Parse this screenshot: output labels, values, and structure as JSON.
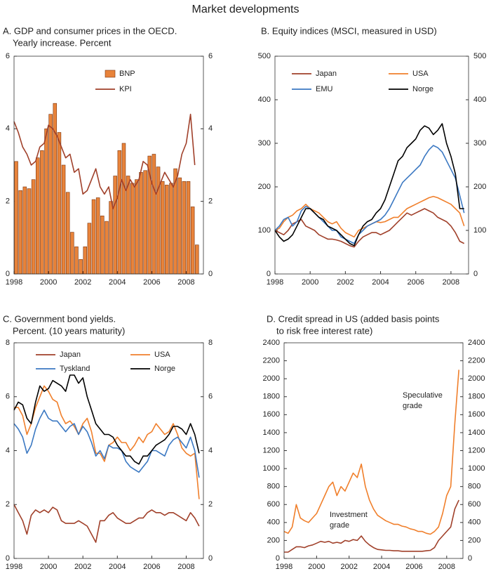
{
  "title": "Market developments",
  "chart_data": [
    {
      "type": "bar",
      "title": "A. GDP and consumer prices in the OECD.",
      "subtitle": "Yearly increase. Percent",
      "x": [
        1998,
        1998.25,
        1998.5,
        1998.75,
        1999,
        1999.25,
        1999.5,
        1999.75,
        2000,
        2000.25,
        2000.5,
        2000.75,
        2001,
        2001.25,
        2001.5,
        2001.75,
        2002,
        2002.25,
        2002.5,
        2002.75,
        2003,
        2003.25,
        2003.5,
        2003.75,
        2004,
        2004.25,
        2004.5,
        2004.75,
        2005,
        2005.25,
        2005.5,
        2005.75,
        2006,
        2006.25,
        2006.5,
        2006.75,
        2007,
        2007.25,
        2007.5,
        2007.75,
        2008,
        2008.25,
        2008.5
      ],
      "series": [
        {
          "name": "BNP",
          "type": "bar",
          "color": "#e8833a",
          "values": [
            3.1,
            2.3,
            2.4,
            2.35,
            2.6,
            3.2,
            3.4,
            4.0,
            4.4,
            4.7,
            3.9,
            3.0,
            2.25,
            1.15,
            0.75,
            0.4,
            0.75,
            1.4,
            2.05,
            2.1,
            1.6,
            1.45,
            2.0,
            2.7,
            3.4,
            3.6,
            2.7,
            2.5,
            2.6,
            2.8,
            2.85,
            3.25,
            3.3,
            2.95,
            2.55,
            2.45,
            2.5,
            2.9,
            2.65,
            2.55,
            2.55,
            1.85,
            0.8
          ]
        },
        {
          "name": "KPI",
          "type": "line",
          "color": "#a0402a",
          "values": [
            4.2,
            3.9,
            3.5,
            3.3,
            3.0,
            3.1,
            3.5,
            3.6,
            4.1,
            4.0,
            3.8,
            3.5,
            3.2,
            3.3,
            2.8,
            2.9,
            2.2,
            2.3,
            2.6,
            2.9,
            2.4,
            2.2,
            2.4,
            1.8,
            2.1,
            2.6,
            2.3,
            2.6,
            2.4,
            2.6,
            3.1,
            3.0,
            2.5,
            2.2,
            2.5,
            2.8,
            2.6,
            2.4,
            2.7,
            3.3,
            3.6,
            4.4,
            3.0
          ]
        }
      ],
      "xlim": [
        1998,
        2009
      ],
      "xticks": [
        1998,
        2000,
        2002,
        2004,
        2006,
        2008
      ],
      "ylim": [
        0,
        6
      ],
      "yticks": [
        0,
        2,
        4,
        6
      ],
      "y2lim": [
        0,
        6
      ],
      "y2ticks": [
        0,
        2,
        4,
        6
      ],
      "legend": "top"
    },
    {
      "type": "line",
      "title": "B. Equity indices (MSCI, measured in USD)",
      "x": [
        1998,
        1998.25,
        1998.5,
        1998.75,
        1999,
        1999.25,
        1999.5,
        1999.75,
        2000,
        2000.25,
        2000.5,
        2000.75,
        2001,
        2001.25,
        2001.5,
        2001.75,
        2002,
        2002.25,
        2002.5,
        2002.75,
        2003,
        2003.25,
        2003.5,
        2003.75,
        2004,
        2004.25,
        2004.5,
        2004.75,
        2005,
        2005.25,
        2005.5,
        2005.75,
        2006,
        2006.25,
        2006.5,
        2006.75,
        2007,
        2007.25,
        2007.5,
        2007.75,
        2008,
        2008.25,
        2008.5,
        2008.75
      ],
      "series": [
        {
          "name": "Japan",
          "color": "#a0402a",
          "values": [
            100,
            95,
            90,
            100,
            115,
            120,
            125,
            110,
            105,
            100,
            90,
            85,
            80,
            80,
            78,
            75,
            70,
            65,
            62,
            75,
            85,
            90,
            95,
            95,
            90,
            95,
            100,
            110,
            120,
            130,
            140,
            135,
            140,
            145,
            150,
            145,
            140,
            130,
            125,
            120,
            110,
            95,
            75,
            70
          ]
        },
        {
          "name": "USA",
          "color": "#f07f2b",
          "values": [
            100,
            105,
            120,
            130,
            135,
            145,
            150,
            160,
            150,
            145,
            140,
            130,
            120,
            115,
            120,
            105,
            95,
            90,
            85,
            100,
            105,
            110,
            115,
            120,
            118,
            120,
            125,
            130,
            130,
            140,
            150,
            155,
            160,
            165,
            170,
            175,
            178,
            175,
            170,
            165,
            160,
            150,
            140,
            110
          ]
        },
        {
          "name": "EMU",
          "color": "#3b78c2",
          "values": [
            100,
            110,
            125,
            130,
            110,
            120,
            145,
            155,
            150,
            140,
            130,
            120,
            110,
            100,
            100,
            85,
            80,
            75,
            70,
            90,
            100,
            110,
            115,
            120,
            125,
            135,
            150,
            170,
            190,
            210,
            220,
            230,
            240,
            250,
            270,
            285,
            295,
            290,
            280,
            260,
            240,
            220,
            180,
            140
          ]
        },
        {
          "name": "Norge",
          "color": "#000000",
          "values": [
            100,
            85,
            75,
            80,
            90,
            110,
            130,
            150,
            150,
            140,
            130,
            125,
            110,
            105,
            100,
            90,
            80,
            70,
            65,
            90,
            110,
            120,
            125,
            140,
            150,
            170,
            200,
            230,
            260,
            270,
            290,
            300,
            310,
            330,
            340,
            335,
            320,
            330,
            345,
            300,
            270,
            230,
            150,
            150
          ]
        }
      ],
      "xlim": [
        1998,
        2009
      ],
      "xticks": [
        1998,
        2000,
        2002,
        2004,
        2006,
        2008
      ],
      "ylim": [
        0,
        500
      ],
      "yticks": [
        0,
        100,
        200,
        300,
        400,
        500
      ],
      "y2lim": [
        0,
        500
      ],
      "y2ticks": [
        0,
        100,
        200,
        300,
        400,
        500
      ],
      "legend": "top"
    },
    {
      "type": "line",
      "title": "C. Government bond yields.",
      "subtitle": "Percent. (10 years maturity)",
      "x": [
        1998,
        1998.25,
        1998.5,
        1998.75,
        1999,
        1999.25,
        1999.5,
        1999.75,
        2000,
        2000.25,
        2000.5,
        2000.75,
        2001,
        2001.25,
        2001.5,
        2001.75,
        2002,
        2002.25,
        2002.5,
        2002.75,
        2003,
        2003.25,
        2003.5,
        2003.75,
        2004,
        2004.25,
        2004.5,
        2004.75,
        2005,
        2005.25,
        2005.5,
        2005.75,
        2006,
        2006.25,
        2006.5,
        2006.75,
        2007,
        2007.25,
        2007.5,
        2007.75,
        2008,
        2008.25,
        2008.5,
        2008.75
      ],
      "series": [
        {
          "name": "Japan",
          "color": "#a0402a",
          "values": [
            2.0,
            1.7,
            1.4,
            0.9,
            1.6,
            1.8,
            1.7,
            1.8,
            1.7,
            1.9,
            1.8,
            1.4,
            1.3,
            1.3,
            1.3,
            1.4,
            1.3,
            1.2,
            0.9,
            0.6,
            1.4,
            1.4,
            1.6,
            1.7,
            1.5,
            1.4,
            1.3,
            1.3,
            1.4,
            1.5,
            1.5,
            1.7,
            1.8,
            1.7,
            1.7,
            1.6,
            1.7,
            1.7,
            1.6,
            1.5,
            1.4,
            1.7,
            1.5,
            1.2
          ]
        },
        {
          "name": "USA",
          "color": "#f07f2b",
          "values": [
            5.6,
            5.6,
            5.3,
            4.6,
            5.0,
            5.6,
            6.0,
            6.4,
            6.2,
            5.9,
            5.8,
            5.3,
            5.0,
            5.1,
            4.9,
            4.6,
            5.0,
            5.2,
            4.7,
            3.9,
            3.9,
            3.6,
            4.2,
            4.3,
            4.5,
            4.3,
            4.3,
            4.0,
            4.2,
            4.5,
            4.3,
            4.6,
            4.7,
            5.0,
            4.8,
            4.6,
            4.7,
            5.0,
            4.6,
            4.1,
            3.9,
            3.8,
            3.9,
            2.2
          ]
        },
        {
          "name": "Tyskland",
          "color": "#3b78c2",
          "values": [
            5.0,
            4.8,
            4.5,
            3.9,
            4.2,
            4.8,
            5.2,
            5.5,
            5.2,
            5.1,
            5.1,
            4.9,
            4.7,
            4.9,
            5.0,
            4.6,
            4.9,
            4.7,
            4.3,
            3.8,
            4.0,
            3.7,
            4.2,
            4.1,
            4.1,
            4.0,
            3.6,
            3.4,
            3.3,
            3.2,
            3.4,
            3.6,
            4.0,
            4.0,
            3.9,
            3.8,
            4.2,
            4.4,
            4.5,
            4.3,
            4.1,
            4.5,
            4.0,
            3.0
          ]
        },
        {
          "name": "Norge",
          "color": "#000000",
          "values": [
            5.5,
            5.8,
            5.7,
            5.2,
            5.0,
            5.8,
            6.4,
            6.2,
            6.3,
            6.6,
            6.5,
            6.4,
            6.2,
            6.8,
            6.8,
            6.5,
            6.7,
            6.0,
            5.5,
            5.0,
            4.8,
            4.6,
            4.6,
            4.5,
            4.2,
            4.0,
            3.8,
            3.8,
            3.6,
            3.5,
            3.8,
            3.8,
            4.0,
            4.2,
            4.3,
            4.4,
            4.6,
            4.9,
            4.9,
            4.8,
            4.6,
            5.0,
            4.6,
            3.9
          ]
        }
      ],
      "xlim": [
        1998,
        2009
      ],
      "xticks": [
        1998,
        2000,
        2002,
        2004,
        2006,
        2008
      ],
      "ylim": [
        0,
        8
      ],
      "yticks": [
        0,
        2,
        4,
        6,
        8
      ],
      "y2lim": [
        0,
        8
      ],
      "y2ticks": [
        0,
        2,
        4,
        6,
        8
      ],
      "legend": "top"
    },
    {
      "type": "line",
      "title": "D. Credit spread in US (added basis points",
      "subtitle": "to risk free interest rate)",
      "x": [
        1998,
        1998.25,
        1998.5,
        1998.75,
        1999,
        1999.25,
        1999.5,
        1999.75,
        2000,
        2000.25,
        2000.5,
        2000.75,
        2001,
        2001.25,
        2001.5,
        2001.75,
        2002,
        2002.25,
        2002.5,
        2002.75,
        2003,
        2003.25,
        2003.5,
        2003.75,
        2004,
        2004.25,
        2004.5,
        2004.75,
        2005,
        2005.25,
        2005.5,
        2005.75,
        2006,
        2006.25,
        2006.5,
        2006.75,
        2007,
        2007.25,
        2007.5,
        2007.75,
        2008,
        2008.25,
        2008.5,
        2008.75
      ],
      "series": [
        {
          "name": "Speculative grade",
          "color": "#f07f2b",
          "values": [
            300,
            280,
            350,
            600,
            450,
            420,
            400,
            450,
            500,
            600,
            700,
            800,
            850,
            700,
            800,
            750,
            850,
            950,
            900,
            1050,
            800,
            650,
            550,
            480,
            450,
            420,
            400,
            380,
            380,
            360,
            350,
            330,
            320,
            300,
            300,
            280,
            270,
            300,
            350,
            500,
            700,
            800,
            1500,
            2100
          ]
        },
        {
          "name": "Investment grade",
          "color": "#a0402a",
          "values": [
            70,
            70,
            100,
            130,
            130,
            120,
            140,
            150,
            170,
            190,
            180,
            190,
            170,
            180,
            170,
            200,
            190,
            210,
            200,
            250,
            190,
            150,
            120,
            100,
            95,
            90,
            90,
            85,
            85,
            80,
            80,
            80,
            80,
            80,
            80,
            85,
            90,
            120,
            200,
            250,
            300,
            350,
            550,
            650
          ]
        }
      ],
      "xlim": [
        1998,
        2009
      ],
      "xticks": [
        1998,
        2000,
        2002,
        2004,
        2006,
        2008
      ],
      "ylim": [
        0,
        2400
      ],
      "yticks": [
        0,
        200,
        400,
        600,
        800,
        1000,
        1200,
        1400,
        1600,
        1800,
        2000,
        2200,
        2400
      ],
      "y2lim": [
        0,
        2400
      ],
      "y2ticks": [
        0,
        200,
        400,
        600,
        800,
        1000,
        1200,
        1400,
        1600,
        1800,
        2000,
        2200,
        2400
      ]
    }
  ]
}
